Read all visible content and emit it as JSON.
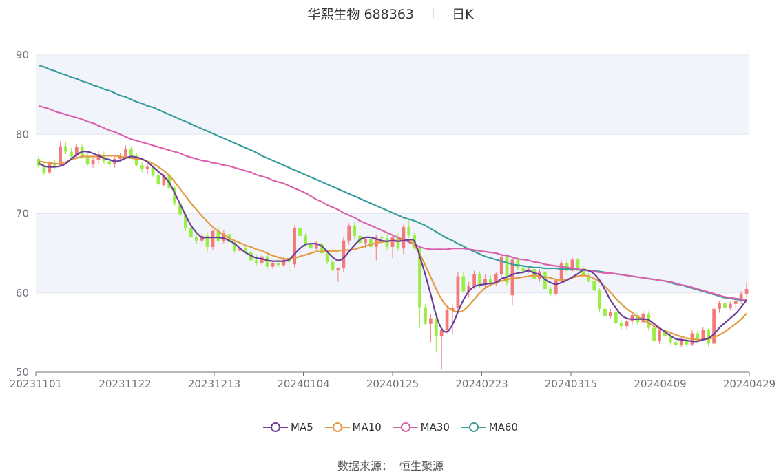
{
  "header": {
    "stock_name": "华熙生物",
    "stock_code": "688363",
    "period": "日K"
  },
  "source": {
    "label": "数据来源：",
    "value": "恒生聚源"
  },
  "colors": {
    "up": "#f47a7a",
    "down": "#99ee44",
    "ma5": "#6a3d9a",
    "ma10": "#e39a41",
    "ma30": "#d862ac",
    "ma60": "#3a9c9c",
    "band": "#f2f4fb",
    "grid": "#e3e6f0"
  },
  "chart_data": {
    "type": "candlestick",
    "ylim": [
      50,
      90
    ],
    "yticks": [
      50,
      60,
      70,
      80,
      90
    ],
    "x_tick_labels": [
      "20231101",
      "20231122",
      "20231213",
      "20240104",
      "20240125",
      "20240223",
      "20240315",
      "20240409",
      "20240429"
    ],
    "legend": [
      "MA5",
      "MA10",
      "MA30",
      "MA60"
    ],
    "ohlc": [
      [
        76.9,
        77.3,
        75.7,
        76.0
      ],
      [
        76.0,
        76.4,
        74.9,
        75.1
      ],
      [
        75.2,
        76.6,
        75.0,
        76.4
      ],
      [
        76.3,
        76.8,
        75.6,
        76.0
      ],
      [
        76.1,
        79.1,
        76.0,
        78.5
      ],
      [
        78.5,
        79.0,
        77.5,
        77.8
      ],
      [
        77.8,
        78.3,
        77.0,
        77.2
      ],
      [
        77.3,
        78.8,
        77.1,
        78.4
      ],
      [
        78.4,
        78.7,
        76.9,
        77.1
      ],
      [
        77.1,
        77.6,
        75.9,
        76.2
      ],
      [
        76.2,
        77.0,
        75.8,
        76.8
      ],
      [
        76.8,
        77.9,
        76.3,
        77.5
      ],
      [
        77.4,
        77.8,
        76.2,
        76.6
      ],
      [
        76.6,
        77.1,
        75.9,
        76.2
      ],
      [
        76.2,
        77.2,
        75.8,
        76.9
      ],
      [
        76.9,
        77.6,
        76.5,
        77.2
      ],
      [
        77.2,
        78.6,
        76.9,
        78.1
      ],
      [
        78.1,
        78.5,
        77.0,
        77.3
      ],
      [
        77.3,
        77.6,
        75.9,
        76.1
      ],
      [
        76.1,
        76.5,
        75.2,
        75.6
      ],
      [
        75.6,
        76.2,
        75.0,
        75.9
      ],
      [
        75.9,
        76.1,
        74.6,
        74.8
      ],
      [
        74.8,
        75.2,
        73.5,
        73.7
      ],
      [
        73.6,
        75.0,
        73.4,
        74.9
      ],
      [
        74.9,
        75.1,
        73.0,
        73.2
      ],
      [
        73.2,
        73.5,
        71.0,
        71.3
      ],
      [
        71.3,
        71.6,
        69.5,
        69.9
      ],
      [
        69.9,
        70.2,
        67.8,
        68.2
      ],
      [
        68.2,
        68.6,
        66.8,
        67.0
      ],
      [
        67.0,
        67.4,
        66.2,
        66.6
      ],
      [
        66.6,
        67.5,
        66.3,
        67.2
      ],
      [
        67.2,
        67.6,
        65.2,
        65.8
      ],
      [
        65.8,
        68.0,
        65.4,
        67.8
      ],
      [
        67.8,
        68.3,
        66.3,
        66.5
      ],
      [
        66.5,
        67.9,
        66.2,
        67.5
      ],
      [
        67.4,
        67.8,
        66.1,
        66.4
      ],
      [
        66.4,
        66.7,
        65.0,
        65.3
      ],
      [
        65.3,
        66.0,
        64.8,
        65.7
      ],
      [
        65.7,
        66.1,
        64.9,
        65.1
      ],
      [
        65.1,
        65.5,
        63.9,
        64.1
      ],
      [
        64.1,
        64.8,
        63.5,
        63.8
      ],
      [
        63.8,
        64.9,
        63.5,
        64.6
      ],
      [
        64.6,
        65.0,
        63.0,
        63.3
      ],
      [
        63.3,
        64.0,
        63.0,
        63.8
      ],
      [
        63.8,
        64.3,
        63.2,
        63.5
      ],
      [
        63.5,
        64.6,
        63.3,
        64.2
      ],
      [
        64.2,
        64.5,
        62.6,
        63.9
      ],
      [
        63.6,
        68.5,
        63.1,
        68.2
      ],
      [
        68.2,
        68.4,
        66.9,
        67.2
      ],
      [
        67.2,
        67.5,
        65.8,
        66.1
      ],
      [
        66.1,
        66.6,
        65.3,
        65.6
      ],
      [
        65.6,
        66.5,
        65.2,
        66.2
      ],
      [
        66.2,
        66.4,
        64.8,
        65.0
      ],
      [
        65.0,
        65.3,
        63.6,
        63.9
      ],
      [
        63.9,
        64.2,
        62.6,
        62.9
      ],
      [
        62.9,
        63.2,
        61.4,
        63.1
      ],
      [
        63.1,
        67.0,
        62.6,
        66.6
      ],
      [
        66.6,
        68.8,
        66.1,
        68.5
      ],
      [
        68.5,
        68.9,
        66.8,
        67.2
      ],
      [
        67.2,
        68.4,
        66.0,
        66.3
      ],
      [
        66.3,
        67.1,
        65.6,
        66.8
      ],
      [
        66.8,
        67.3,
        65.5,
        65.8
      ],
      [
        65.8,
        67.4,
        64.1,
        67.0
      ],
      [
        67.0,
        67.6,
        66.4,
        66.9
      ],
      [
        66.9,
        67.5,
        65.4,
        65.8
      ],
      [
        65.8,
        67.3,
        64.4,
        67.0
      ],
      [
        67.0,
        67.5,
        65.3,
        65.6
      ],
      [
        65.6,
        68.6,
        64.9,
        68.3
      ],
      [
        68.3,
        69.3,
        66.9,
        67.3
      ],
      [
        67.3,
        67.6,
        65.4,
        65.7
      ],
      [
        65.7,
        66.0,
        55.6,
        58.2
      ],
      [
        58.2,
        58.6,
        55.9,
        56.1
      ],
      [
        56.1,
        57.3,
        53.8,
        56.8
      ],
      [
        56.8,
        57.0,
        52.5,
        54.5
      ],
      [
        54.5,
        55.0,
        50.3,
        55.3
      ],
      [
        55.3,
        58.2,
        54.9,
        57.9
      ],
      [
        57.9,
        58.6,
        54.8,
        58.1
      ],
      [
        58.1,
        62.6,
        57.6,
        62.1
      ],
      [
        62.1,
        62.6,
        60.0,
        60.2
      ],
      [
        60.2,
        61.4,
        59.4,
        60.9
      ],
      [
        60.9,
        62.8,
        60.5,
        62.4
      ],
      [
        62.4,
        62.7,
        60.6,
        61.1
      ],
      [
        61.1,
        62.3,
        60.7,
        61.8
      ],
      [
        61.8,
        62.2,
        60.8,
        61.2
      ],
      [
        61.2,
        62.7,
        60.9,
        62.4
      ],
      [
        62.4,
        64.9,
        62.1,
        64.5
      ],
      [
        64.5,
        64.9,
        60.9,
        61.3
      ],
      [
        59.7,
        64.6,
        58.5,
        64.2
      ],
      [
        64.2,
        64.5,
        62.9,
        63.1
      ],
      [
        63.1,
        63.5,
        62.3,
        62.7
      ],
      [
        62.7,
        63.3,
        62.5,
        63.0
      ],
      [
        63.0,
        63.4,
        61.5,
        61.8
      ],
      [
        61.8,
        63.0,
        61.4,
        62.7
      ],
      [
        62.7,
        62.9,
        60.2,
        60.5
      ],
      [
        60.5,
        60.8,
        59.6,
        59.9
      ],
      [
        59.9,
        61.9,
        59.5,
        61.6
      ],
      [
        61.6,
        64.1,
        61.4,
        63.7
      ],
      [
        63.7,
        64.2,
        62.4,
        62.8
      ],
      [
        62.8,
        64.5,
        62.6,
        64.2
      ],
      [
        64.2,
        64.4,
        62.8,
        63.1
      ],
      [
        63.1,
        63.4,
        61.9,
        62.2
      ],
      [
        62.2,
        62.5,
        61.2,
        61.5
      ],
      [
        61.5,
        61.8,
        60.0,
        60.3
      ],
      [
        60.3,
        60.6,
        57.6,
        58.0
      ],
      [
        58.0,
        58.3,
        56.8,
        57.1
      ],
      [
        57.1,
        58.0,
        56.7,
        57.6
      ],
      [
        57.6,
        57.9,
        55.9,
        56.2
      ],
      [
        56.2,
        56.6,
        55.4,
        55.8
      ],
      [
        55.8,
        56.7,
        55.4,
        56.4
      ],
      [
        56.4,
        57.6,
        56.0,
        57.2
      ],
      [
        57.2,
        57.5,
        55.9,
        56.3
      ],
      [
        56.3,
        57.9,
        56.0,
        57.4
      ],
      [
        57.4,
        57.7,
        55.2,
        55.6
      ],
      [
        55.6,
        55.9,
        53.5,
        53.9
      ],
      [
        53.9,
        55.6,
        53.6,
        55.3
      ],
      [
        55.3,
        55.7,
        54.2,
        54.6
      ],
      [
        54.6,
        54.9,
        53.5,
        53.8
      ],
      [
        53.8,
        54.1,
        53.0,
        53.4
      ],
      [
        53.4,
        54.4,
        53.1,
        54.1
      ],
      [
        54.1,
        54.4,
        53.2,
        53.5
      ],
      [
        53.5,
        55.3,
        53.3,
        54.9
      ],
      [
        54.9,
        55.2,
        53.9,
        54.2
      ],
      [
        54.2,
        55.7,
        53.9,
        55.3
      ],
      [
        55.3,
        55.6,
        53.2,
        53.6
      ],
      [
        53.6,
        58.3,
        53.3,
        58.0
      ],
      [
        58.0,
        59.0,
        57.5,
        58.7
      ],
      [
        58.7,
        59.2,
        57.6,
        58.1
      ],
      [
        58.1,
        58.9,
        57.8,
        58.6
      ],
      [
        58.6,
        59.4,
        58.0,
        59.0
      ],
      [
        59.0,
        60.2,
        58.6,
        59.9
      ],
      [
        59.9,
        61.3,
        59.4,
        60.5
      ]
    ],
    "ma5": [
      76.4,
      76.0,
      75.9,
      75.9,
      76.0,
      76.3,
      76.9,
      77.4,
      77.8,
      77.8,
      77.6,
      77.3,
      77.0,
      76.8,
      76.6,
      76.7,
      77.0,
      77.2,
      77.1,
      76.9,
      76.5,
      75.9,
      75.3,
      74.7,
      73.9,
      72.6,
      71.2,
      69.8,
      68.5,
      67.6,
      67.0,
      67.0,
      67.0,
      67.0,
      66.9,
      66.6,
      66.2,
      65.6,
      65.1,
      64.7,
      64.4,
      64.3,
      64.1,
      64.0,
      64.0,
      64.0,
      64.2,
      64.9,
      65.6,
      66.1,
      66.2,
      66.2,
      65.9,
      65.2,
      64.5,
      64.1,
      64.4,
      65.2,
      66.0,
      66.7,
      67.0,
      67.0,
      66.8,
      66.6,
      66.5,
      66.6,
      66.5,
      66.6,
      66.7,
      66.5,
      64.6,
      62.3,
      59.8,
      57.2,
      55.5,
      55.1,
      56.0,
      57.6,
      59.1,
      60.2,
      60.8,
      61.0,
      61.1,
      61.2,
      61.3,
      61.8,
      62.0,
      62.3,
      62.5,
      62.6,
      62.8,
      62.5,
      62.3,
      61.7,
      61.3,
      61.1,
      61.3,
      61.6,
      62.0,
      62.4,
      62.9,
      62.8,
      62.4,
      61.6,
      60.4,
      59.1,
      58.1,
      57.2,
      56.8,
      56.7,
      56.7,
      56.7,
      56.6,
      56.1,
      55.6,
      55.1,
      54.6,
      54.2,
      54.1,
      54.0,
      53.9,
      53.9,
      54.1,
      54.3,
      54.8,
      55.6,
      56.2,
      56.8,
      57.4,
      58.2,
      59.1
    ],
    "ma10": [
      76.6,
      76.5,
      76.4,
      76.3,
      76.3,
      76.5,
      76.8,
      77.0,
      77.2,
      77.2,
      77.2,
      77.2,
      77.3,
      77.3,
      77.3,
      77.2,
      77.1,
      77.0,
      76.9,
      76.8,
      76.6,
      76.3,
      75.9,
      75.4,
      74.8,
      74.0,
      73.1,
      72.2,
      71.3,
      70.5,
      69.7,
      69.0,
      68.3,
      67.8,
      67.3,
      66.9,
      66.6,
      66.3,
      66.0,
      65.8,
      65.5,
      65.3,
      65.0,
      64.7,
      64.5,
      64.3,
      64.3,
      64.4,
      64.6,
      64.8,
      65.0,
      65.2,
      65.2,
      65.3,
      65.3,
      65.3,
      65.4,
      65.4,
      65.5,
      65.7,
      65.9,
      66.1,
      66.3,
      66.4,
      66.5,
      66.6,
      66.6,
      66.7,
      66.6,
      66.0,
      64.9,
      63.5,
      62.0,
      60.5,
      59.2,
      58.3,
      57.8,
      57.6,
      57.8,
      58.4,
      59.2,
      60.0,
      60.6,
      61.0,
      61.3,
      61.5,
      61.7,
      61.8,
      61.9,
      62.0,
      62.1,
      62.2,
      62.1,
      62.0,
      61.9,
      61.7,
      61.6,
      61.7,
      61.9,
      62.1,
      62.2,
      62.1,
      61.8,
      61.4,
      60.8,
      60.1,
      59.3,
      58.6,
      58.0,
      57.5,
      57.0,
      56.6,
      56.2,
      55.8,
      55.5,
      55.2,
      55.0,
      54.7,
      54.5,
      54.3,
      54.2,
      54.1,
      54.1,
      54.2,
      54.4,
      54.7,
      55.1,
      55.6,
      56.1,
      56.7,
      57.4
    ],
    "ma30": [
      83.6,
      83.4,
      83.2,
      82.9,
      82.7,
      82.5,
      82.3,
      82.1,
      81.9,
      81.6,
      81.4,
      81.1,
      80.8,
      80.5,
      80.3,
      80.0,
      79.7,
      79.4,
      79.2,
      79.0,
      78.8,
      78.6,
      78.4,
      78.2,
      78.0,
      77.8,
      77.6,
      77.3,
      77.1,
      76.9,
      76.7,
      76.6,
      76.4,
      76.3,
      76.1,
      76.0,
      75.8,
      75.6,
      75.4,
      75.2,
      74.9,
      74.7,
      74.5,
      74.2,
      74.0,
      73.8,
      73.5,
      73.2,
      72.9,
      72.6,
      72.2,
      71.8,
      71.5,
      71.1,
      70.8,
      70.5,
      70.1,
      69.8,
      69.5,
      69.1,
      68.8,
      68.5,
      68.2,
      67.9,
      67.6,
      67.3,
      67.0,
      66.7,
      66.4,
      66.1,
      65.8,
      65.6,
      65.5,
      65.5,
      65.5,
      65.5,
      65.6,
      65.6,
      65.6,
      65.5,
      65.4,
      65.3,
      65.2,
      65.1,
      65.0,
      64.8,
      64.7,
      64.5,
      64.3,
      64.2,
      64.1,
      63.9,
      63.8,
      63.6,
      63.5,
      63.4,
      63.3,
      63.2,
      63.1,
      63.0,
      62.9,
      62.8,
      62.7,
      62.6,
      62.5,
      62.5,
      62.4,
      62.3,
      62.2,
      62.1,
      62.0,
      61.9,
      61.8,
      61.7,
      61.6,
      61.5,
      61.4,
      61.2,
      61.0,
      60.9,
      60.7,
      60.5,
      60.3,
      60.1,
      59.9,
      59.7,
      59.5,
      59.4,
      59.3,
      59.2,
      59.1
    ],
    "ma60": [
      88.7,
      88.5,
      88.2,
      88.0,
      87.7,
      87.5,
      87.2,
      87.0,
      86.7,
      86.5,
      86.2,
      86.0,
      85.7,
      85.5,
      85.2,
      84.9,
      84.7,
      84.4,
      84.1,
      83.9,
      83.6,
      83.4,
      83.1,
      82.8,
      82.5,
      82.2,
      81.9,
      81.6,
      81.3,
      81.0,
      80.7,
      80.4,
      80.1,
      79.8,
      79.5,
      79.2,
      78.9,
      78.6,
      78.3,
      78.0,
      77.7,
      77.3,
      77.0,
      76.7,
      76.4,
      76.1,
      75.8,
      75.5,
      75.2,
      74.9,
      74.6,
      74.3,
      74.0,
      73.7,
      73.4,
      73.1,
      72.8,
      72.5,
      72.2,
      71.9,
      71.6,
      71.3,
      71.0,
      70.7,
      70.4,
      70.1,
      69.8,
      69.5,
      69.3,
      69.1,
      68.8,
      68.5,
      68.1,
      67.7,
      67.3,
      66.9,
      66.6,
      66.2,
      65.9,
      65.5,
      65.2,
      64.9,
      64.6,
      64.4,
      64.2,
      64.0,
      63.8,
      63.6,
      63.5,
      63.4,
      63.3,
      63.2,
      63.2,
      63.1,
      63.1,
      63.1,
      63.0,
      63.0,
      63.0,
      62.9,
      62.9,
      62.8,
      62.8,
      62.7,
      62.6,
      62.5,
      62.4,
      62.3,
      62.2,
      62.1,
      62.0,
      61.9,
      61.8,
      61.7,
      61.6,
      61.5,
      61.3,
      61.1,
      61.0,
      60.8,
      60.6,
      60.4,
      60.2,
      60.0,
      59.8,
      59.6,
      59.4,
      59.3,
      59.2,
      59.1,
      59.0
    ]
  }
}
